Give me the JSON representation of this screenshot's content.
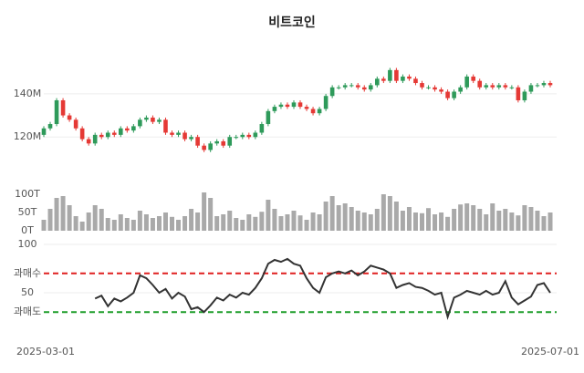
{
  "chart_data": [
    {
      "type": "candlestick",
      "title": "비트코인",
      "up_color": "#2e9a5a",
      "down_color": "#e53935",
      "ylim": [
        107,
        156
      ],
      "yticks": [
        {
          "value": 120,
          "label": "120M"
        },
        {
          "value": 140,
          "label": "140M"
        }
      ],
      "grid": true,
      "open": [
        121,
        124,
        126,
        137,
        130,
        128,
        124,
        119,
        117,
        121,
        120,
        122,
        121,
        124,
        123,
        125,
        128,
        129,
        127,
        128,
        122,
        121,
        122,
        119,
        120,
        116,
        114,
        117,
        118,
        116,
        120,
        120,
        121,
        120,
        122,
        126,
        132,
        134,
        135,
        134,
        136,
        134,
        133,
        131,
        133,
        139,
        143,
        143,
        144,
        144,
        143,
        142,
        144,
        147,
        146,
        151,
        146,
        148,
        147,
        145,
        143,
        143,
        142,
        141,
        138,
        141,
        143,
        148,
        146,
        143,
        144,
        143,
        144,
        143,
        143,
        137,
        141,
        144,
        144,
        145
      ],
      "high": [
        125,
        127,
        138,
        138,
        131,
        129,
        125,
        120,
        122,
        122,
        123,
        123,
        125,
        125,
        126,
        129,
        130,
        130,
        129,
        129,
        123,
        123,
        123,
        121,
        121,
        117,
        118,
        119,
        119,
        121,
        121,
        122,
        122,
        123,
        127,
        133,
        135,
        136,
        136,
        137,
        137,
        135,
        134,
        134,
        140,
        144,
        144,
        145,
        145,
        145,
        144,
        145,
        148,
        148,
        152,
        152,
        149,
        149,
        148,
        146,
        144,
        144,
        143,
        142,
        142,
        144,
        149,
        149,
        147,
        145,
        145,
        145,
        145,
        144,
        144,
        142,
        145,
        145,
        146,
        146
      ],
      "low": [
        120,
        123,
        125,
        129,
        127,
        123,
        118,
        116,
        116,
        119,
        119,
        120,
        120,
        122,
        122,
        124,
        127,
        126,
        126,
        121,
        120,
        120,
        118,
        118,
        115,
        113,
        113,
        116,
        115,
        115,
        119,
        119,
        119,
        119,
        121,
        125,
        131,
        133,
        133,
        133,
        133,
        132,
        130,
        130,
        132,
        138,
        142,
        142,
        143,
        142,
        141,
        141,
        143,
        145,
        145,
        145,
        145,
        146,
        144,
        142,
        142,
        141,
        140,
        137,
        137,
        140,
        142,
        145,
        142,
        142,
        142,
        142,
        142,
        142,
        136,
        136,
        140,
        143,
        143,
        143
      ],
      "close": [
        124,
        126,
        137,
        130,
        128,
        124,
        119,
        117,
        121,
        120,
        122,
        121,
        124,
        123,
        125,
        128,
        129,
        127,
        128,
        122,
        121,
        122,
        119,
        120,
        116,
        114,
        117,
        118,
        116,
        120,
        120,
        121,
        120,
        122,
        126,
        132,
        134,
        135,
        134,
        136,
        134,
        133,
        131,
        133,
        139,
        143,
        143,
        144,
        144,
        143,
        142,
        144,
        147,
        146,
        151,
        146,
        148,
        147,
        145,
        143,
        143,
        142,
        141,
        138,
        141,
        143,
        148,
        146,
        143,
        144,
        143,
        144,
        143,
        143,
        137,
        141,
        144,
        144,
        145,
        144
      ]
    },
    {
      "type": "bar",
      "color": "#a9a9a9",
      "ylim": [
        0,
        110
      ],
      "yticks": [
        {
          "value": 0,
          "label": "0T"
        },
        {
          "value": 50,
          "label": "50T"
        },
        {
          "value": 100,
          "label": "100T"
        }
      ],
      "values": [
        30,
        60,
        90,
        95,
        70,
        40,
        25,
        50,
        70,
        60,
        35,
        30,
        45,
        35,
        30,
        55,
        45,
        35,
        40,
        50,
        38,
        30,
        40,
        60,
        50,
        105,
        90,
        40,
        45,
        55,
        35,
        30,
        45,
        38,
        52,
        85,
        60,
        40,
        45,
        55,
        42,
        30,
        50,
        45,
        80,
        95,
        70,
        75,
        65,
        55,
        50,
        45,
        60,
        100,
        95,
        80,
        55,
        65,
        50,
        48,
        62,
        45,
        50,
        38,
        60,
        72,
        75,
        70,
        60,
        45,
        75,
        55,
        60,
        50,
        42,
        70,
        65,
        55,
        40,
        50
      ]
    },
    {
      "type": "line",
      "color": "#333333",
      "ylim": [
        0,
        100
      ],
      "yticks": [
        {
          "value": 30,
          "label": "과매도",
          "line_color": "#1f9e2a"
        },
        50,
        {
          "value": 70,
          "label": "과매수",
          "line_color": "#e02020"
        },
        100
      ],
      "categories": [
        "2025-03-01",
        null,
        null,
        null,
        null,
        null,
        null,
        null,
        null,
        null,
        null,
        null,
        null,
        null,
        null,
        null,
        null,
        null,
        null,
        null,
        null,
        null,
        null,
        null,
        null,
        null,
        null,
        null,
        null,
        null,
        null,
        null,
        null,
        null,
        null,
        null,
        null,
        null,
        null,
        null,
        null,
        null,
        null,
        null,
        null,
        null,
        null,
        null,
        null,
        null,
        null,
        null,
        null,
        null,
        null,
        null,
        null,
        null,
        null,
        null,
        null,
        null,
        null,
        null,
        null,
        null,
        null,
        null,
        null,
        null,
        null,
        null,
        null,
        null,
        null,
        null,
        null,
        null,
        null,
        "2025-07-01"
      ],
      "values": [
        null,
        null,
        null,
        null,
        null,
        null,
        null,
        null,
        44,
        47,
        36,
        44,
        41,
        45,
        50,
        68,
        65,
        58,
        50,
        54,
        44,
        50,
        46,
        33,
        35,
        30,
        37,
        45,
        42,
        48,
        45,
        50,
        48,
        55,
        65,
        80,
        84,
        82,
        85,
        80,
        78,
        65,
        55,
        50,
        66,
        70,
        72,
        70,
        73,
        68,
        72,
        78,
        76,
        74,
        70,
        55,
        58,
        60,
        56,
        55,
        52,
        48,
        50,
        25,
        45,
        48,
        52,
        50,
        48,
        52,
        48,
        50,
        62,
        45,
        38,
        42,
        46,
        58,
        60,
        50
      ]
    }
  ]
}
